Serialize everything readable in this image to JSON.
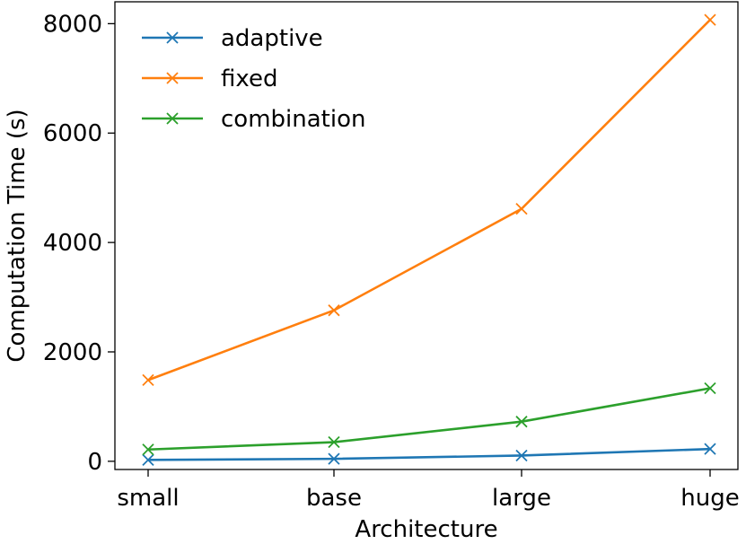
{
  "chart_data": {
    "type": "line",
    "title": "",
    "xlabel": "Architecture",
    "ylabel": "Computation Time (s)",
    "categories": [
      "small",
      "base",
      "large",
      "huge"
    ],
    "ylim": [
      -150,
      8400
    ],
    "yticks": [
      0,
      2000,
      4000,
      6000,
      8000
    ],
    "ytick_labels": [
      "0",
      "2000",
      "4000",
      "6000",
      "8000"
    ],
    "grid": false,
    "legend_position": "upper-left",
    "marker": "x",
    "series": [
      {
        "name": "adaptive",
        "color": "#1f77b4",
        "values": [
          25,
          45,
          105,
          225
        ]
      },
      {
        "name": "fixed",
        "color": "#ff7f0e",
        "values": [
          1485,
          2760,
          4615,
          8070
        ]
      },
      {
        "name": "combination",
        "color": "#2ca02c",
        "values": [
          215,
          350,
          725,
          1335
        ]
      }
    ]
  }
}
